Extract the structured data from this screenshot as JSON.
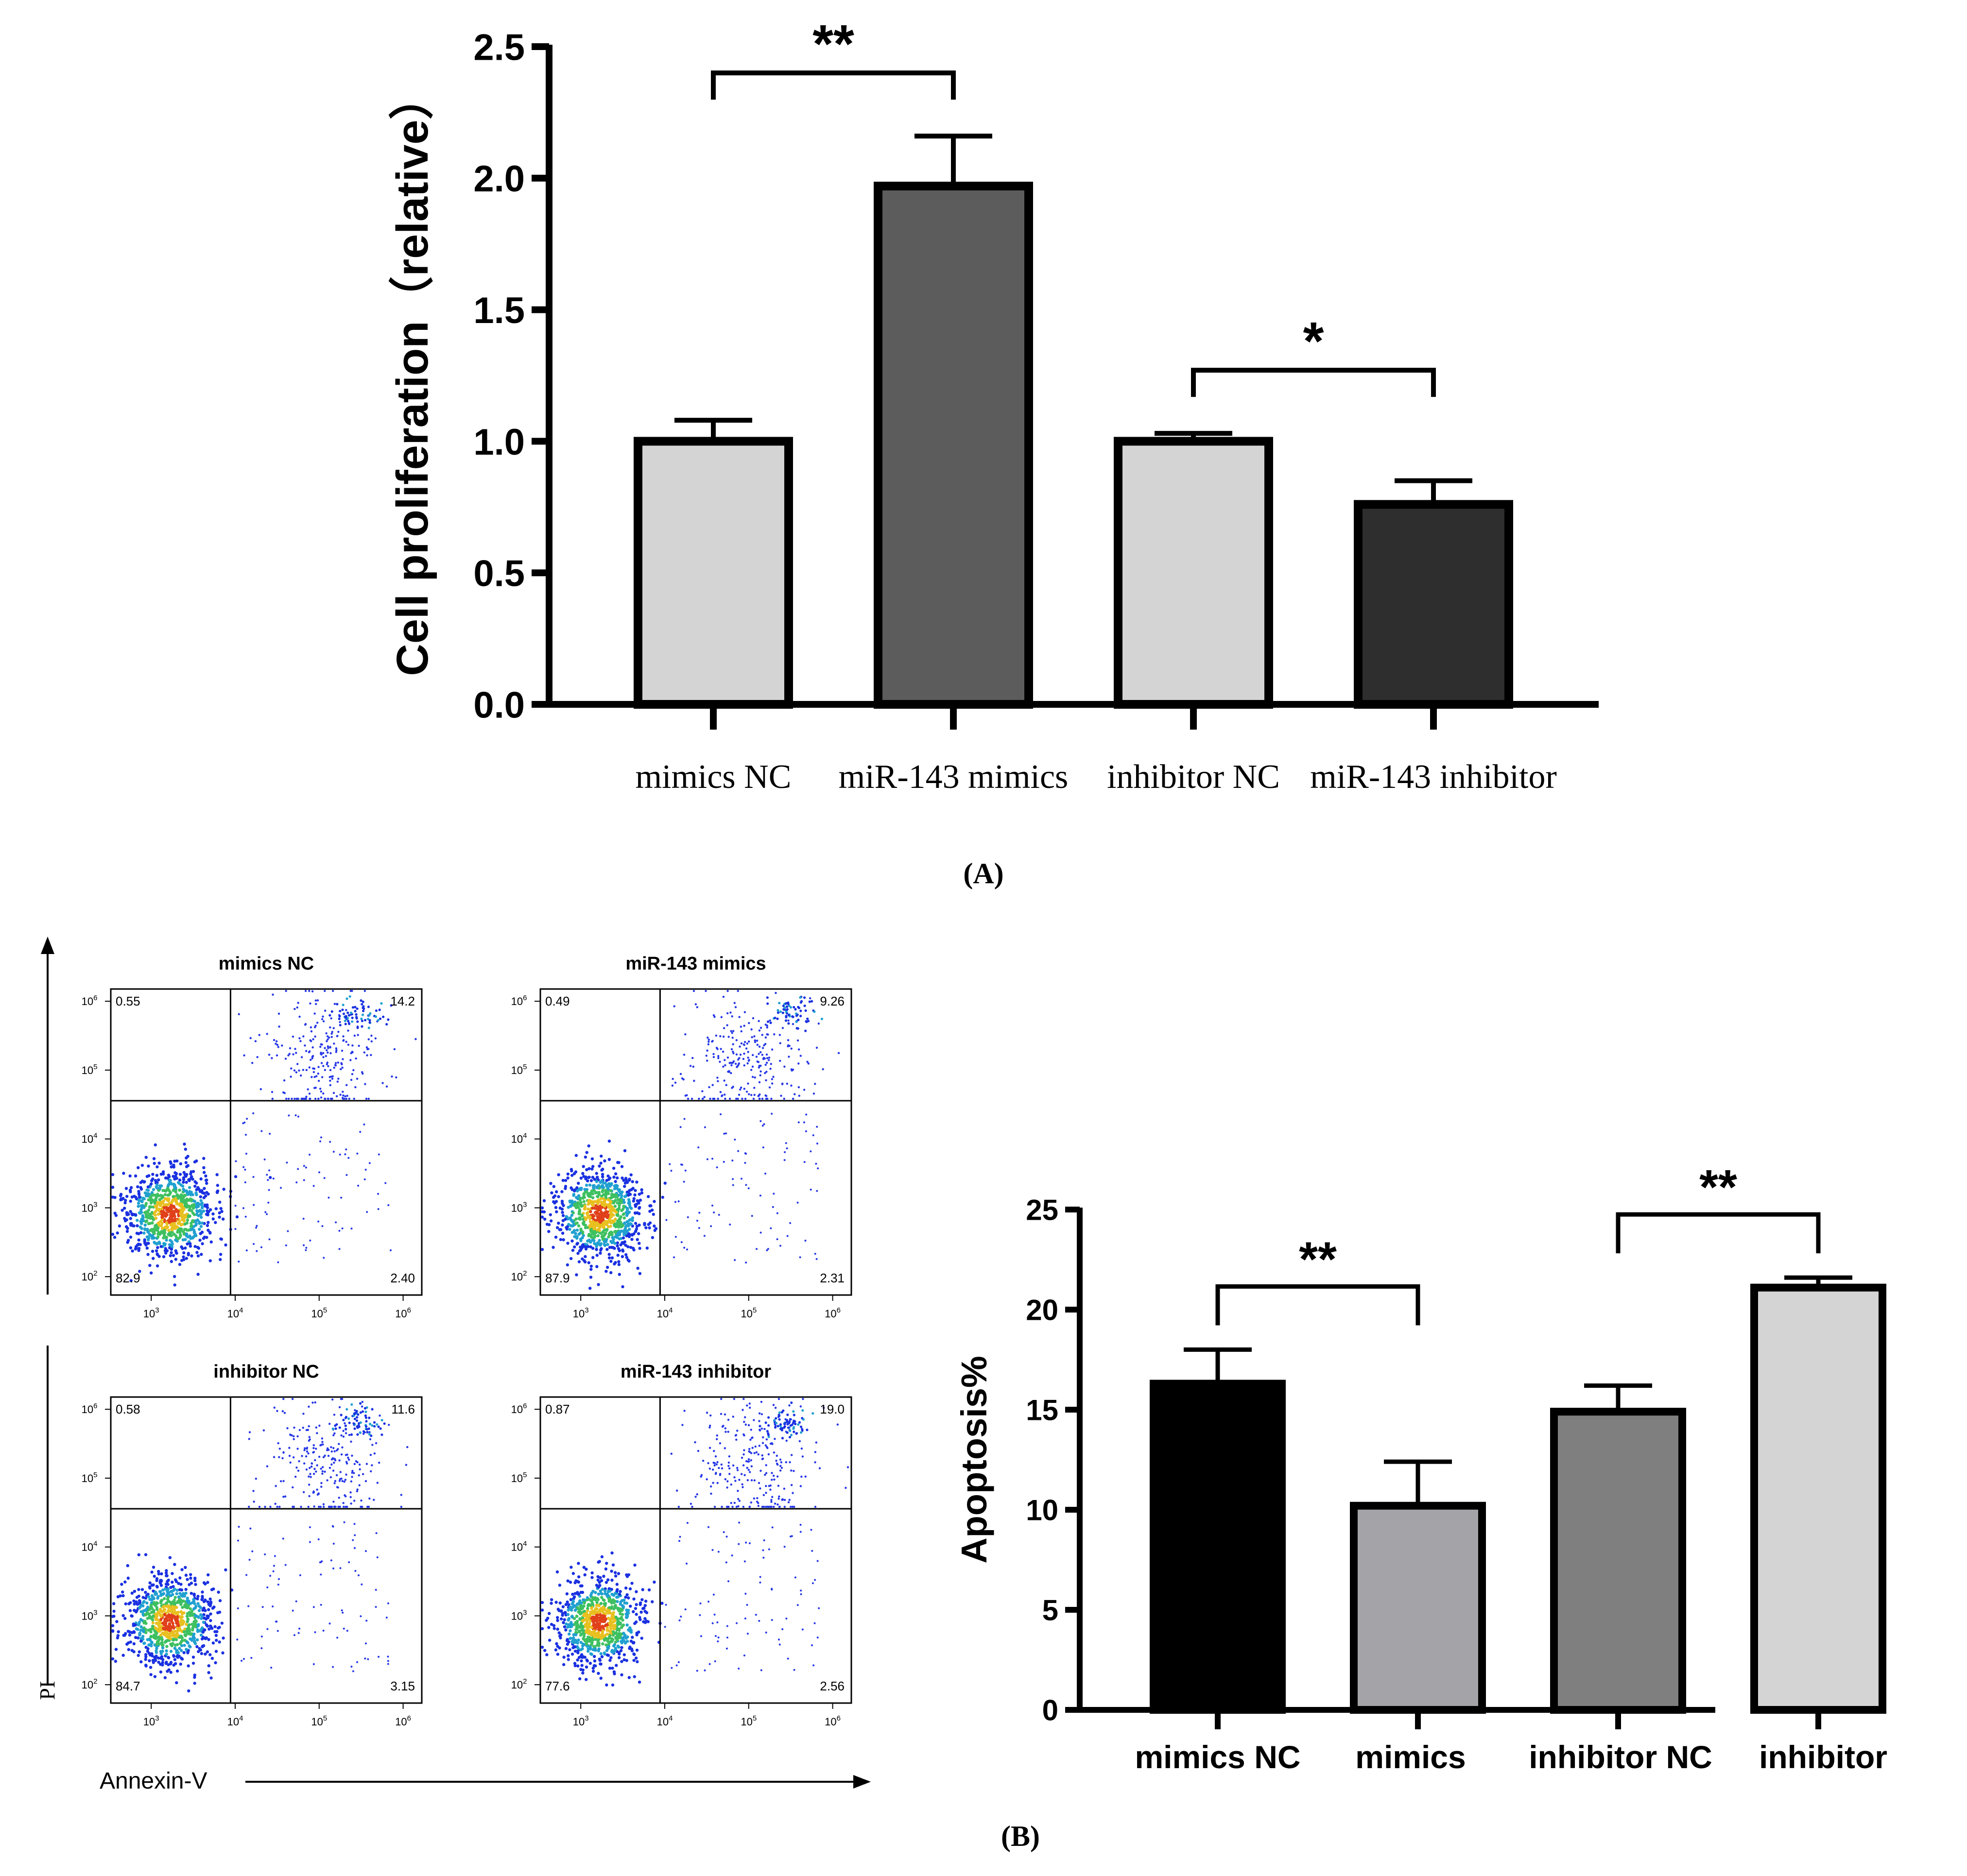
{
  "panel_a_label": "A",
  "panel_b_label": "B",
  "chart_data": [
    {
      "id": "A",
      "type": "bar",
      "title": "",
      "xlabel": "",
      "ylabel": "Cell proliferation（relative）",
      "categories": [
        "mimics NC",
        "miR-143 mimics",
        "inhibitor NC",
        "miR-143 inhibitor"
      ],
      "values": [
        1.0,
        1.97,
        1.0,
        0.76
      ],
      "errors": [
        0.08,
        0.19,
        0.03,
        0.09
      ],
      "colors": [
        "#d4d4d4",
        "#5c5c5c",
        "#d4d4d4",
        "#2e2e2e"
      ],
      "ylim": [
        0,
        2.5
      ],
      "yticks": [
        "0.0",
        "0.5",
        "1.0",
        "1.5",
        "2.0",
        "2.5"
      ],
      "significance": [
        {
          "from": 0,
          "to": 1,
          "label": "**"
        },
        {
          "from": 2,
          "to": 3,
          "label": "*"
        }
      ]
    },
    {
      "id": "B-bar",
      "type": "bar",
      "title": "",
      "xlabel": "",
      "ylabel": "Apoptosis%",
      "categories": [
        "mimics NC",
        "mimics",
        "inhibitor NC",
        "inhibitor"
      ],
      "values": [
        16.3,
        10.2,
        14.9,
        21.1
      ],
      "errors": [
        1.7,
        2.2,
        1.3,
        0.5
      ],
      "colors": [
        "#000000",
        "#a4a4a8",
        "#7f7f7f",
        "#d4d4d4"
      ],
      "ylim": [
        0,
        25
      ],
      "yticks": [
        "0",
        "5",
        "10",
        "15",
        "20",
        "25"
      ],
      "significance": [
        {
          "from": 0,
          "to": 1,
          "label": "**"
        },
        {
          "from": 2,
          "to": 3,
          "label": "**"
        }
      ]
    },
    {
      "id": "B-flow",
      "type": "scatter",
      "xlabel": "Annexin-V",
      "ylabel": "PI",
      "x_ticks": [
        "10",
        "10",
        "10",
        "10"
      ],
      "x_tick_exponents": [
        "3",
        "4",
        "5",
        "6"
      ],
      "y_ticks": [
        "10",
        "10",
        "10",
        "10",
        "10"
      ],
      "y_tick_exponents": [
        "2",
        "3",
        "4",
        "5",
        "6"
      ],
      "panels": [
        {
          "title": "mimics NC",
          "upper_left": "0.55",
          "upper_right": "14.2",
          "lower_left": "82.9",
          "lower_right": "2.40"
        },
        {
          "title": "miR-143 mimics",
          "upper_left": "0.49",
          "upper_right": "9.26",
          "lower_left": "87.9",
          "lower_right": "2.31"
        },
        {
          "title": "inhibitor NC",
          "upper_left": "0.58",
          "upper_right": "11.6",
          "lower_left": "84.7",
          "lower_right": "3.15"
        },
        {
          "title": "miR-143 inhibitor",
          "upper_left": "0.87",
          "upper_right": "19.0",
          "lower_left": "77.6",
          "lower_right": "2.56"
        }
      ]
    }
  ]
}
